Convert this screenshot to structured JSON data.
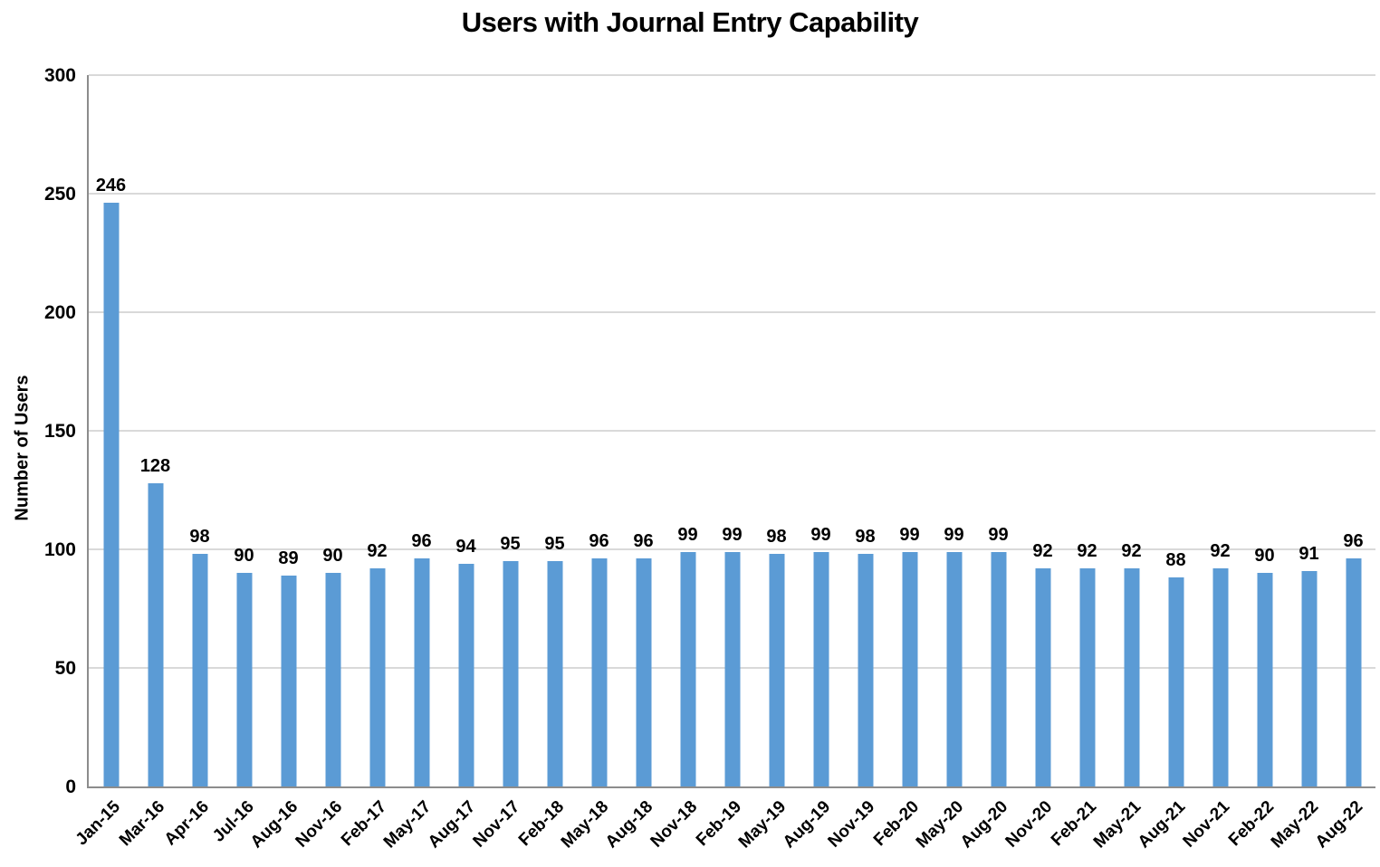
{
  "chart_data": {
    "type": "bar",
    "title": "Users with Journal Entry Capability",
    "xlabel": "",
    "ylabel": "Number of Users",
    "categories": [
      "Jan-15",
      "Mar-16",
      "Apr-16",
      "Jul-16",
      "Aug-16",
      "Nov-16",
      "Feb-17",
      "May-17",
      "Aug-17",
      "Nov-17",
      "Feb-18",
      "May-18",
      "Aug-18",
      "Nov-18",
      "Feb-19",
      "May-19",
      "Aug-19",
      "Nov-19",
      "Feb-20",
      "May-20",
      "Aug-20",
      "Nov-20",
      "Feb-21",
      "May-21",
      "Aug-21",
      "Nov-21",
      "Feb-22",
      "May-22",
      "Aug-22"
    ],
    "values": [
      246,
      128,
      98,
      90,
      89,
      90,
      92,
      96,
      94,
      95,
      95,
      96,
      96,
      99,
      99,
      98,
      99,
      98,
      99,
      99,
      99,
      92,
      92,
      92,
      88,
      92,
      90,
      91,
      96
    ],
    "data_labels_shown": true,
    "ylim": [
      0,
      300
    ],
    "yticks": [
      0,
      50,
      100,
      150,
      200,
      250,
      300
    ],
    "grid": "horizontal",
    "legend": false,
    "colors": {
      "bar": "#5B9BD5",
      "gridline": "#D9D9D9",
      "axis_line": "#8C8C8C",
      "text": "#000000",
      "background": "#FFFFFF"
    }
  }
}
